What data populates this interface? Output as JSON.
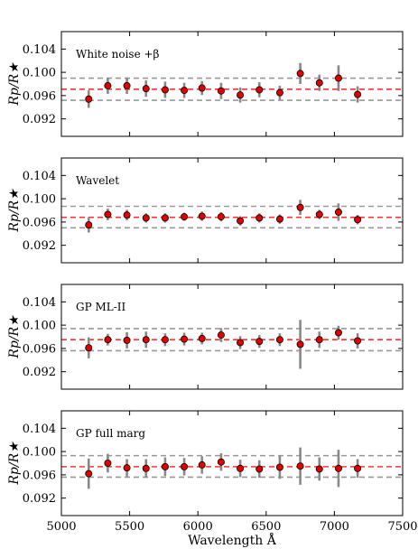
{
  "chart_data": [
    {
      "type": "scatter",
      "label": "White noise +β",
      "ylabel": "Rp/R★",
      "xlim": [
        5000,
        7500
      ],
      "ylim": [
        0.089,
        0.107
      ],
      "yticks": [
        "0.104",
        "0.100",
        "0.096",
        "0.092"
      ],
      "ytick_values": [
        0.104,
        0.1,
        0.096,
        0.092
      ],
      "x": [
        5200,
        5340,
        5480,
        5620,
        5760,
        5900,
        6030,
        6170,
        6310,
        6450,
        6600,
        6750,
        6890,
        7030,
        7170
      ],
      "y": [
        0.0954,
        0.0977,
        0.0977,
        0.0972,
        0.097,
        0.0969,
        0.0973,
        0.0968,
        0.0961,
        0.097,
        0.0965,
        0.0998,
        0.0982,
        0.099,
        0.0962
      ],
      "yerr": [
        0.0015,
        0.0014,
        0.0014,
        0.0014,
        0.0014,
        0.0013,
        0.0012,
        0.0014,
        0.0013,
        0.0013,
        0.0012,
        0.0018,
        0.0014,
        0.0022,
        0.0014
      ],
      "mean": 0.0971,
      "band": [
        0.0952,
        0.099
      ],
      "grid": false
    },
    {
      "type": "scatter",
      "label": "Wavelet",
      "ylabel": "Rp/R★",
      "xlim": [
        5000,
        7500
      ],
      "ylim": [
        0.089,
        0.107
      ],
      "yticks": [
        "0.104",
        "0.100",
        "0.096",
        "0.092"
      ],
      "ytick_values": [
        0.104,
        0.1,
        0.096,
        0.092
      ],
      "x": [
        5200,
        5340,
        5480,
        5620,
        5760,
        5900,
        6030,
        6170,
        6310,
        6450,
        6600,
        6750,
        6890,
        7030,
        7170
      ],
      "y": [
        0.0955,
        0.0973,
        0.0972,
        0.0967,
        0.0967,
        0.0969,
        0.097,
        0.0969,
        0.0962,
        0.0967,
        0.0965,
        0.0985,
        0.0973,
        0.0977,
        0.0964
      ],
      "yerr": [
        0.0013,
        0.001,
        0.0009,
        0.0008,
        0.0008,
        0.0007,
        0.0008,
        0.0008,
        0.0008,
        0.0008,
        0.0008,
        0.0013,
        0.0008,
        0.0015,
        0.0008
      ],
      "mean": 0.0968,
      "band": [
        0.095,
        0.0987
      ],
      "grid": false
    },
    {
      "type": "scatter",
      "label": "GP ML-II",
      "ylabel": "Rp/R★",
      "xlim": [
        5000,
        7500
      ],
      "ylim": [
        0.089,
        0.107
      ],
      "yticks": [
        "0.104",
        "0.100",
        "0.096",
        "0.092"
      ],
      "ytick_values": [
        0.104,
        0.1,
        0.096,
        0.092
      ],
      "x": [
        5200,
        5340,
        5480,
        5620,
        5760,
        5900,
        6030,
        6170,
        6310,
        6450,
        6600,
        6750,
        6890,
        7030,
        7170
      ],
      "y": [
        0.0961,
        0.0975,
        0.0974,
        0.0975,
        0.0975,
        0.0976,
        0.0977,
        0.0983,
        0.097,
        0.0972,
        0.0975,
        0.0967,
        0.0975,
        0.0987,
        0.0973
      ],
      "yerr": [
        0.0018,
        0.001,
        0.0014,
        0.0014,
        0.0011,
        0.0011,
        0.001,
        0.0012,
        0.0011,
        0.0011,
        0.0011,
        0.0042,
        0.0014,
        0.0012,
        0.0013
      ],
      "mean": 0.0975,
      "band": [
        0.0956,
        0.0994
      ],
      "grid": false
    },
    {
      "type": "scatter",
      "label": "GP full marg",
      "ylabel": "Rp/R★",
      "xlabel": "Wavelength Å",
      "xticks": [
        "5000",
        "5500",
        "6000",
        "6500",
        "7000",
        "7500"
      ],
      "xtick_values": [
        5000,
        5500,
        6000,
        6500,
        7000,
        7500
      ],
      "xlim": [
        5000,
        7500
      ],
      "ylim": [
        0.089,
        0.107
      ],
      "yticks": [
        "0.104",
        "0.100",
        "0.096",
        "0.092"
      ],
      "ytick_values": [
        0.104,
        0.1,
        0.096,
        0.092
      ],
      "x": [
        5200,
        5340,
        5480,
        5620,
        5760,
        5900,
        6030,
        6170,
        6310,
        6450,
        6600,
        6750,
        6890,
        7030,
        7170
      ],
      "y": [
        0.0962,
        0.098,
        0.0972,
        0.0971,
        0.0974,
        0.0974,
        0.0977,
        0.0982,
        0.0971,
        0.097,
        0.0973,
        0.0975,
        0.097,
        0.0971,
        0.0971
      ],
      "yerr": [
        0.0026,
        0.0016,
        0.0015,
        0.0016,
        0.0016,
        0.0015,
        0.0015,
        0.0015,
        0.0015,
        0.0015,
        0.002,
        0.0032,
        0.002,
        0.0032,
        0.0016
      ],
      "mean": 0.0974,
      "band": [
        0.0956,
        0.0993
      ],
      "grid": false
    }
  ],
  "colors": {
    "marker_fill": "#e00000",
    "errorbar": "#888888",
    "mean_line": "#ff3333",
    "band_line": "#999999",
    "axes": "#000000"
  }
}
